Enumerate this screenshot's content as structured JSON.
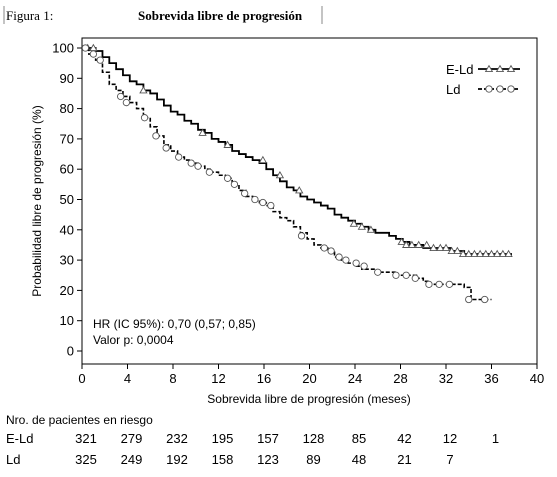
{
  "figure_caption": {
    "label": "Figura 1:",
    "title": "Sobrevida libre de progresión"
  },
  "chart_data": {
    "type": "line",
    "xlabel": "Sobrevida libre de progresión (meses)",
    "ylabel": "Probabilidad libre de progresión (%)",
    "xlim": [
      0,
      40
    ],
    "ylim": [
      0,
      100
    ],
    "xticks": [
      0,
      4,
      8,
      12,
      16,
      20,
      24,
      28,
      32,
      36,
      40
    ],
    "yticks": [
      0,
      10,
      20,
      30,
      40,
      50,
      60,
      70,
      80,
      90,
      100
    ],
    "grid": false,
    "legend_position": "top-right",
    "series": [
      {
        "name": "E-Ld",
        "color": "#000000",
        "line_style": "solid",
        "marker": "triangle",
        "x": [
          0,
          0.6,
          1.2,
          1.8,
          2.4,
          3.0,
          3.6,
          4.2,
          4.8,
          5.4,
          6.0,
          6.6,
          7.2,
          7.8,
          8.4,
          9.0,
          9.6,
          10.2,
          10.8,
          11.4,
          12.0,
          12.6,
          13.2,
          13.8,
          14.4,
          15.0,
          15.6,
          16.2,
          16.8,
          17.4,
          18.0,
          18.6,
          19.2,
          19.8,
          20.4,
          21.0,
          21.6,
          22.2,
          22.8,
          23.4,
          24.0,
          24.6,
          25.2,
          25.8,
          26.4,
          27.0,
          27.6,
          28.2,
          28.8,
          29.4,
          30.0,
          30.6,
          31.2,
          31.8,
          32.4,
          33.0,
          33.6,
          34.2,
          34.8,
          35.4,
          36.0,
          36.6,
          37.2,
          37.8
        ],
        "y": [
          100,
          100,
          99,
          97,
          95,
          93,
          91,
          89,
          88,
          86,
          85,
          83,
          81,
          79,
          78,
          76,
          75,
          73,
          72,
          70,
          69,
          68,
          66,
          65,
          64,
          63,
          62,
          60,
          58,
          56,
          54,
          53,
          51,
          50,
          49,
          48,
          47,
          45,
          44,
          43,
          42,
          41,
          40,
          39,
          39,
          38,
          37,
          36,
          35,
          35,
          34,
          34,
          34,
          34,
          33,
          33,
          32,
          32,
          32,
          32,
          32,
          32,
          32,
          32
        ],
        "censor_x": [
          0.5,
          1.0,
          5.4,
          10.6,
          12.8,
          15.9,
          17.4,
          19.1,
          23.9,
          24.6,
          25.4,
          28.1,
          28.5,
          29.0,
          29.6,
          30.3,
          30.9,
          31.5,
          32.0,
          32.5,
          33.0,
          33.5,
          34.0,
          34.5,
          35.0,
          35.5,
          36.0,
          36.5,
          37.0,
          37.5
        ],
        "censor_y": [
          100,
          100,
          86,
          72,
          68,
          63,
          58,
          53,
          42,
          41,
          40,
          36,
          35,
          35,
          35,
          35,
          34,
          34,
          34,
          33,
          33,
          32,
          32,
          32,
          32,
          32,
          32,
          32,
          32,
          32
        ]
      },
      {
        "name": "Ld",
        "color": "#000000",
        "line_style": "dashed",
        "marker": "circle",
        "x": [
          0,
          0.6,
          1.2,
          1.8,
          2.4,
          3.0,
          3.6,
          4.2,
          4.8,
          5.4,
          6.0,
          6.6,
          7.2,
          7.8,
          8.4,
          9.0,
          9.6,
          10.2,
          10.8,
          11.4,
          12.0,
          12.6,
          13.2,
          13.8,
          14.4,
          15.0,
          15.6,
          16.2,
          16.8,
          17.4,
          18.0,
          18.6,
          19.2,
          19.8,
          20.4,
          21.0,
          21.6,
          22.2,
          22.8,
          23.4,
          24.0,
          24.6,
          25.2,
          25.8,
          26.4,
          27.0,
          27.6,
          28.2,
          28.8,
          29.4,
          30.0,
          30.6,
          31.2,
          31.8,
          32.4,
          33.0,
          33.6,
          34.2,
          34.8,
          35.4,
          36.0
        ],
        "y": [
          100,
          98,
          96,
          92,
          88,
          86,
          84,
          82,
          80,
          77,
          74,
          71,
          68,
          66,
          64,
          63,
          62,
          61,
          60,
          59,
          58,
          57,
          55,
          53,
          51,
          50,
          49,
          48,
          46,
          44,
          43,
          41,
          39,
          37,
          35,
          34,
          33,
          31,
          30,
          29,
          28,
          27,
          27,
          26,
          26,
          26,
          25,
          25,
          25,
          24,
          23,
          22,
          22,
          22,
          22,
          22,
          21,
          17,
          17,
          17,
          17
        ],
        "censor_x": [
          0.3,
          1.0,
          1.6,
          3.4,
          3.9,
          5.5,
          6.5,
          7.4,
          8.5,
          9.6,
          10.2,
          11.2,
          12.8,
          13.4,
          14.3,
          15.2,
          15.9,
          16.6,
          19.3,
          21.3,
          21.9,
          22.6,
          23.2,
          24.1,
          24.8,
          26.0,
          27.6,
          28.5,
          29.3,
          30.5,
          31.4,
          32.3,
          34.0,
          35.4
        ],
        "censor_y": [
          100,
          98,
          96,
          84,
          82,
          77,
          71,
          67,
          64,
          62,
          61,
          59,
          57,
          55,
          52,
          50,
          49,
          48,
          38,
          34,
          33,
          31,
          30,
          29,
          28,
          26,
          25,
          25,
          24,
          22,
          22,
          22,
          17,
          17
        ]
      }
    ],
    "annotations": [
      "HR (IC 95%): 0,70 (0,57; 0,85)",
      "Valor p: 0,0004"
    ]
  },
  "risk_table": {
    "title": "Nro. de pacientes en riesgo",
    "rows": [
      {
        "label": "E-Ld",
        "values": [
          "321",
          "279",
          "232",
          "195",
          "157",
          "128",
          "85",
          "42",
          "12",
          "1"
        ]
      },
      {
        "label": "Ld",
        "values": [
          "325",
          "249",
          "192",
          "158",
          "123",
          "89",
          "48",
          "21",
          "7"
        ]
      }
    ]
  }
}
